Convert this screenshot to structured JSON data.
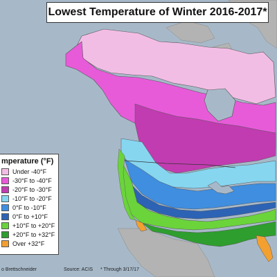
{
  "title": "Lowest Temperature of Winter 2016-2017*",
  "legend": {
    "title": "mperature (°F)",
    "items": [
      {
        "label": "Under -40°F",
        "color": "#f2bde5"
      },
      {
        "label": "-30°F to -40°F",
        "color": "#e75bd9"
      },
      {
        "label": "-20°F to -30°F",
        "color": "#c13cb0"
      },
      {
        "label": "-10°F to -20°F",
        "color": "#86d6f0"
      },
      {
        "label": "0°F to -10°F",
        "color": "#3f8ee0"
      },
      {
        "label": "0°F to +10°F",
        "color": "#2d63b5"
      },
      {
        "label": "+10°F to +20°F",
        "color": "#6ad43a"
      },
      {
        "label": "+20°F to +32°F",
        "color": "#2e9e2e"
      },
      {
        "label": "Over +32°F",
        "color": "#f3a030"
      }
    ]
  },
  "footer": {
    "credit": "o Brettschneider",
    "source": "Source: ACIS",
    "through": "* Through 3/17/17"
  },
  "colors": {
    "ocean": "#a7b9c9",
    "land_other": "#b3b3b3"
  }
}
